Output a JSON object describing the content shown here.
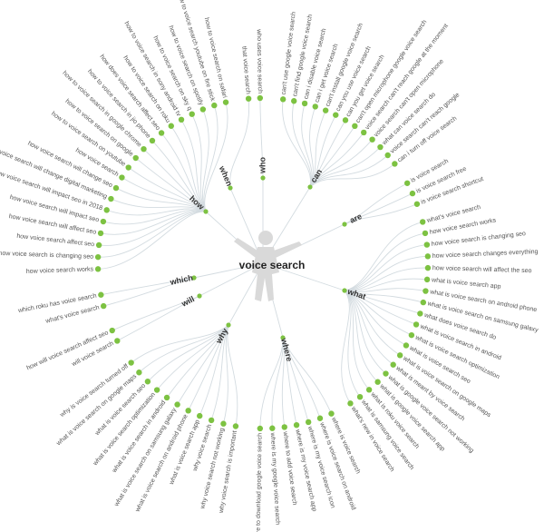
{
  "center": {
    "label": "voice search",
    "icon": "person-silhouette-icon"
  },
  "colors": {
    "node": "#7dc242",
    "link": "#d3dbe0",
    "text": "#555555"
  },
  "branches": [
    {
      "label": "how",
      "leaves": [
        "how voice search works",
        "how voice search is changing seo",
        "how voice search affect seo",
        "how voice search will affect seo",
        "how voice search will impact seo",
        "how voice search will impact seo in 2018",
        "how voice search will change digital marketing",
        "how voice search will change seo",
        "how voice search",
        "how to voice search on youtube",
        "how to voice search on google",
        "how to voice search in google chrome",
        "how to voice search in jio phone",
        "how does voice search affect seo",
        "how to voice search on roku",
        "how to voice search in sony android tv",
        "how to voice search on sky q",
        "how to voice search on spotify",
        "how to voice search youtube on fire stick",
        "how to voice search on safari"
      ]
    },
    {
      "label": "when",
      "leaves": [
        "that voice search"
      ]
    },
    {
      "label": "who",
      "leaves": [
        "who uses voice search"
      ]
    },
    {
      "label": "can",
      "leaves": [
        "can't use google voice search",
        "can't find google voice search",
        "can i disable voice search",
        "can i get voice search",
        "can't install google voice search",
        "can you use voice search",
        "can you get voice search",
        "can't open microphone google voice search",
        "voice search can't reach google at the moment",
        "voice search can't open microphone",
        "what can voice search do",
        "voice search can't reach google",
        "can i turn off voice search"
      ]
    },
    {
      "label": "are",
      "leaves": [
        "is voice search",
        "is voice search free",
        "is voice search shortcut"
      ]
    },
    {
      "label": "what",
      "leaves": [
        "what's voice search",
        "how voice search works",
        "how voice search is changing seo",
        "how voice search changes everything",
        "how voice search will affect the seo",
        "what is voice search app",
        "what is voice search on android phone",
        "what is voice search on samsung galaxy",
        "what does voice search do",
        "what is voice search in android",
        "what is voice search optimization",
        "what is voice search seo",
        "what is voice search on google maps",
        "what is meant by voice search",
        "what is google voice search not working",
        "what is google voice search app",
        "what is roku voice search",
        "what is samsung voice search",
        "what's new in voice search"
      ]
    },
    {
      "label": "where",
      "leaves": [
        "where is voice search",
        "where is voice search on android",
        "where is my voice search icon",
        "where is my voice search app",
        "where to add voice search",
        "where is my google voice search",
        "where to download google voice search"
      ]
    },
    {
      "label": "why",
      "leaves": [
        "why voice search is important",
        "why voice search not working",
        "why voice search",
        "what is voice search app",
        "what is voice search on android phone",
        "what is voice search on samsung galaxy",
        "what is voice search in android",
        "what is voice search optimization",
        "what is voice search seo",
        "what is voice search on google maps",
        "why is voice search turned off"
      ]
    },
    {
      "label": "will",
      "leaves": [
        "will voice search",
        "how will voice search affect seo"
      ]
    },
    {
      "label": "which",
      "leaves": [
        "what's voice search",
        "which roku has voice search"
      ]
    }
  ]
}
